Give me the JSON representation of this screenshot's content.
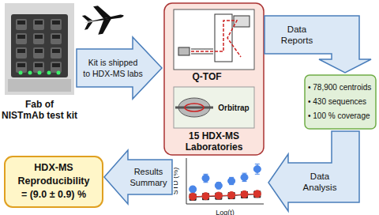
{
  "kit": {
    "label": [
      "Fab of",
      "NISTmAb test kit"
    ]
  },
  "arrows": {
    "shipping": [
      "Kit is shipped",
      "to HDX-MS labs"
    ],
    "reports": [
      "Data",
      "Reports"
    ],
    "analysis": [
      "Data",
      "Analysis"
    ],
    "summary": [
      "Results",
      "Summary"
    ]
  },
  "labs": {
    "instruments": [
      "Q-TOF",
      "Orbitrap"
    ],
    "label": [
      "15 HDX-MS",
      "Laboratories"
    ]
  },
  "reports_box": {
    "items": [
      "• 78,900 centroids",
      "• 430 sequences",
      "• 100 % coverage"
    ]
  },
  "result_box": {
    "lines": [
      "HDX-MS",
      "Reproducibility",
      "= (9.0 ± 0.9) %"
    ]
  },
  "chart_data": {
    "type": "scatter",
    "x_label": "Log(t)",
    "y_label": "STD (%)",
    "x": [
      1,
      2,
      3,
      4,
      5,
      6
    ],
    "xlim": [
      0.5,
      6.5
    ],
    "ylim": [
      0,
      10
    ],
    "tick_labels": false,
    "series": [
      {
        "type": "scatter",
        "color": "#4a86e8",
        "marker": "circle",
        "values": [
          3.2,
          5.6,
          4.0,
          5.0,
          5.8,
          7.6
        ],
        "error": [
          0.6,
          0.9,
          0.7,
          0.8,
          0.9,
          1.1
        ]
      },
      {
        "type": "line",
        "color": "#222222",
        "marker": "square",
        "line_style": "solid",
        "values": [
          1.5,
          1.6,
          1.7,
          1.8,
          2.0,
          2.1
        ]
      },
      {
        "type": "line",
        "color": "#d9352b",
        "marker": "circle",
        "line_style": "solid",
        "values": [
          1.6,
          1.7,
          1.8,
          1.9,
          2.1,
          2.2
        ]
      }
    ]
  }
}
